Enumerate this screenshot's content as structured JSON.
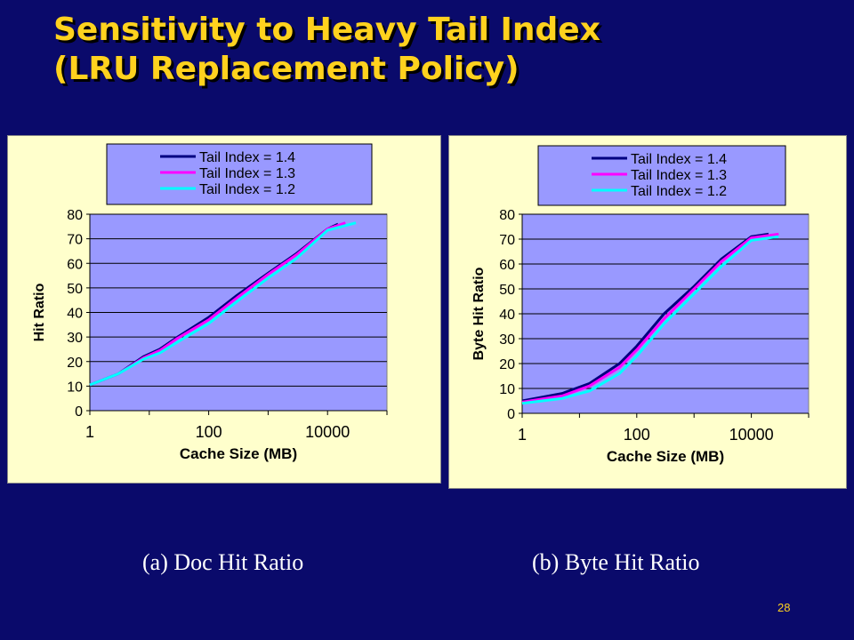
{
  "slide": {
    "title_line1": "Sensitivity to Heavy Tail Index",
    "title_line2": "(LRU Replacement Policy)",
    "page_number": "28"
  },
  "captions": [
    "(a) Doc Hit Ratio",
    "(b) Byte Hit Ratio"
  ],
  "colors": {
    "background": "#0a0a6b",
    "title": "#ffd21e",
    "panel": "#ffffcc",
    "plot_area": "#9999ff",
    "series_1_4": "#000080",
    "series_1_3": "#ff00ff",
    "series_1_2": "#00ffff"
  },
  "chart_data": [
    {
      "type": "line",
      "xlabel": "Cache Size (MB)",
      "ylabel": "Hit Ratio",
      "x_scale": "log",
      "xlim": [
        1,
        100000
      ],
      "ylim": [
        0,
        80
      ],
      "x_ticks": [
        1,
        100,
        10000
      ],
      "x_tick_labels": [
        "1",
        "100",
        "10000"
      ],
      "y_ticks": [
        0,
        10,
        20,
        30,
        40,
        50,
        60,
        70,
        80
      ],
      "y_tick_labels": [
        "0",
        "10",
        "20",
        "30",
        "40",
        "50",
        "60",
        "70",
        "80"
      ],
      "grid": "horizontal",
      "legend_position": "top",
      "series": [
        {
          "name": "Tail Index = 1.4",
          "color": "#000080",
          "points": [
            [
              1,
              10.5
            ],
            [
              3,
              15
            ],
            [
              8,
              22
            ],
            [
              15,
              25
            ],
            [
              30,
              30
            ],
            [
              100,
              38
            ],
            [
              300,
              47
            ],
            [
              1000,
              56
            ],
            [
              3000,
              64
            ],
            [
              10000,
              74
            ],
            [
              15000,
              76
            ]
          ]
        },
        {
          "name": "Tail Index = 1.3",
          "color": "#ff00ff",
          "points": [
            [
              1,
              10.5
            ],
            [
              3,
              15
            ],
            [
              8,
              21.5
            ],
            [
              15,
              24.5
            ],
            [
              30,
              29.5
            ],
            [
              100,
              37
            ],
            [
              300,
              46
            ],
            [
              1000,
              55.5
            ],
            [
              3000,
              63.5
            ],
            [
              10000,
              74
            ],
            [
              20000,
              76.5
            ]
          ]
        },
        {
          "name": "Tail Index = 1.2",
          "color": "#00ffff",
          "points": [
            [
              1,
              10.5
            ],
            [
              3,
              15
            ],
            [
              8,
              21
            ],
            [
              15,
              23.5
            ],
            [
              30,
              28
            ],
            [
              100,
              35.5
            ],
            [
              300,
              44.5
            ],
            [
              1000,
              54
            ],
            [
              3000,
              62
            ],
            [
              10000,
              73.5
            ],
            [
              30000,
              76.5
            ]
          ]
        }
      ]
    },
    {
      "type": "line",
      "xlabel": "Cache Size (MB)",
      "ylabel": "Byte Hit Ratio",
      "x_scale": "log",
      "xlim": [
        1,
        100000
      ],
      "ylim": [
        0,
        80
      ],
      "x_ticks": [
        1,
        100,
        10000
      ],
      "x_tick_labels": [
        "1",
        "100",
        "10000"
      ],
      "y_ticks": [
        0,
        10,
        20,
        30,
        40,
        50,
        60,
        70,
        80
      ],
      "y_tick_labels": [
        "0",
        "10",
        "20",
        "30",
        "40",
        "50",
        "60",
        "70",
        "80"
      ],
      "grid": "horizontal",
      "legend_position": "top",
      "series": [
        {
          "name": "Tail Index = 1.4",
          "color": "#000080",
          "points": [
            [
              1,
              5
            ],
            [
              5,
              8
            ],
            [
              15,
              12
            ],
            [
              50,
              20
            ],
            [
              100,
              27
            ],
            [
              300,
              40
            ],
            [
              1000,
              51
            ],
            [
              3000,
              62
            ],
            [
              10000,
              71
            ],
            [
              20000,
              72
            ]
          ]
        },
        {
          "name": "Tail Index = 1.3",
          "color": "#ff00ff",
          "points": [
            [
              1,
              4.5
            ],
            [
              5,
              7
            ],
            [
              15,
              11
            ],
            [
              50,
              18.5
            ],
            [
              100,
              25.5
            ],
            [
              300,
              38
            ],
            [
              1000,
              50
            ],
            [
              3000,
              61
            ],
            [
              10000,
              70.5
            ],
            [
              30000,
              72
            ]
          ]
        },
        {
          "name": "Tail Index = 1.2",
          "color": "#00ffff",
          "points": [
            [
              1,
              4
            ],
            [
              5,
              6
            ],
            [
              15,
              9
            ],
            [
              50,
              16
            ],
            [
              100,
              23
            ],
            [
              300,
              36
            ],
            [
              1000,
              48
            ],
            [
              3000,
              59
            ],
            [
              10000,
              69.5
            ],
            [
              30000,
              71
            ]
          ]
        }
      ]
    }
  ]
}
